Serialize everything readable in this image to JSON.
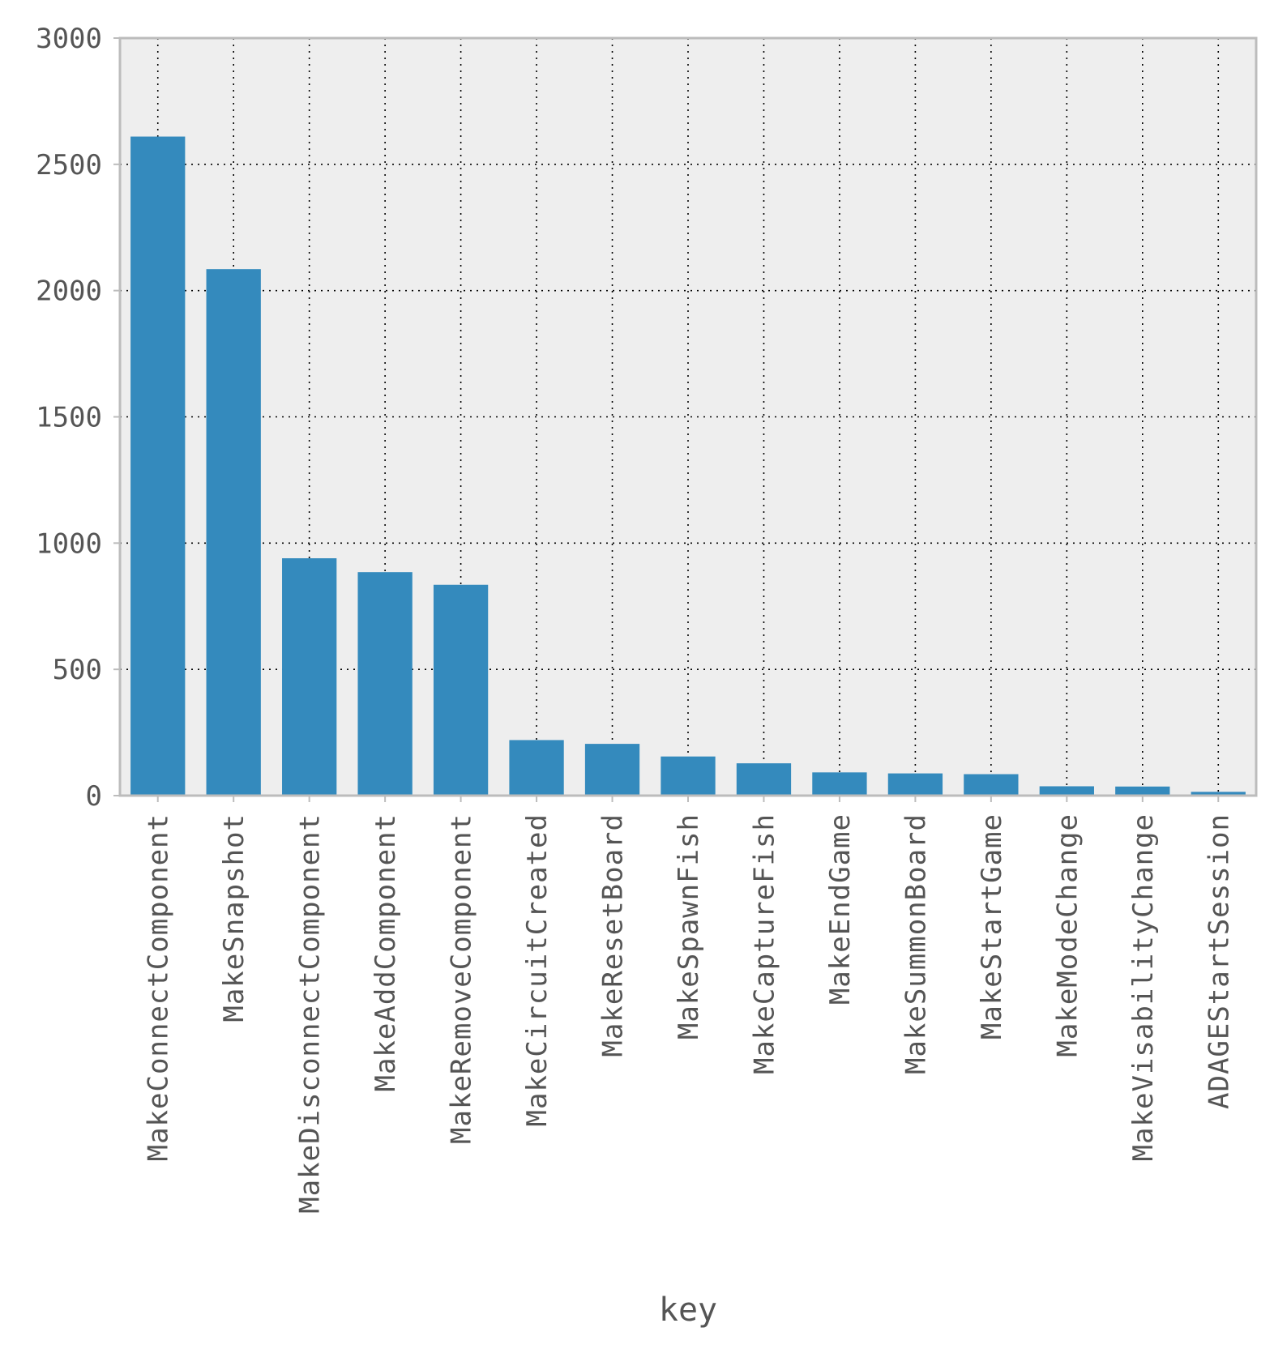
{
  "chart_data": {
    "type": "bar",
    "title": "",
    "xlabel": "key",
    "ylabel": "",
    "ylim": [
      0,
      3000
    ],
    "yticks": [
      0,
      500,
      1000,
      1500,
      2000,
      2500,
      3000
    ],
    "grid": true,
    "legend": "none",
    "colors": {
      "bar": "#348abd",
      "plot_background": "#eeeeee",
      "axes_edge": "#bcbcbc",
      "grid": "#000000",
      "text": "#555555"
    },
    "categories": [
      "MakeConnectComponent",
      "MakeSnapshot",
      "MakeDisconnectComponent",
      "MakeAddComponent",
      "MakeRemoveComponent",
      "MakeCircuitCreated",
      "MakeResetBoard",
      "MakeSpawnFish",
      "MakeCaptureFish",
      "MakeEndGame",
      "MakeSummonBoard",
      "MakeStartGame",
      "MakeModeChange",
      "MakeVisabilityChange",
      "ADAGEStartSession"
    ],
    "values": [
      2610,
      2085,
      940,
      885,
      835,
      220,
      205,
      155,
      128,
      92,
      88,
      85,
      37,
      36,
      15
    ]
  }
}
